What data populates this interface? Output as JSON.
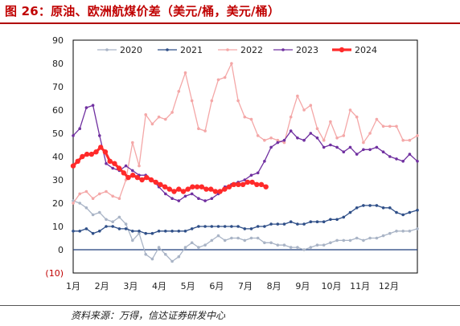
{
  "header": {
    "title": "图 26：原油、欧洲航煤价差（美元/桶，美元/桶）"
  },
  "source": "资料来源：万得，信达证券研发中心",
  "colors": {
    "2020": "#a9b4c6",
    "2021": "#2f4f88",
    "2022": "#f4a7a7",
    "2023": "#7030a0",
    "2024": "#ff2a2a",
    "accent": "#c00000"
  },
  "chart_data": {
    "type": "line",
    "xlabel": "",
    "ylabel": "",
    "xlim": [
      1,
      13
    ],
    "ylim": [
      -10,
      90
    ],
    "yticks": [
      -10,
      0,
      10,
      20,
      30,
      40,
      50,
      60,
      70,
      80,
      90
    ],
    "ytick_labels": [
      "(10)",
      "0",
      "10",
      "20",
      "30",
      "40",
      "50",
      "60",
      "70",
      "80",
      "90"
    ],
    "xticks": [
      1,
      2,
      3,
      4,
      5,
      6,
      7,
      8,
      9,
      10,
      11,
      12
    ],
    "xtick_labels": [
      "1月",
      "2月",
      "3月",
      "4月",
      "5月",
      "6月",
      "7月",
      "8月",
      "9月",
      "10月",
      "11月",
      "12月"
    ],
    "legend": {
      "position": "top",
      "entries": [
        "2020",
        "2021",
        "2022",
        "2023",
        "2024"
      ]
    },
    "series": [
      {
        "name": "2020",
        "markers": true,
        "x": [
          1.0,
          1.23,
          1.46,
          1.69,
          1.92,
          2.15,
          2.38,
          2.61,
          2.84,
          3.07,
          3.3,
          3.53,
          3.76,
          3.99,
          4.22,
          4.45,
          4.68,
          4.91,
          5.14,
          5.37,
          5.6,
          5.83,
          6.06,
          6.29,
          6.52,
          6.75,
          6.98,
          7.21,
          7.44,
          7.67,
          7.9,
          8.13,
          8.36,
          8.59,
          8.82,
          9.05,
          9.28,
          9.51,
          9.74,
          9.97,
          10.2,
          10.43,
          10.66,
          10.89,
          11.12,
          11.35,
          11.58,
          11.81,
          12.04,
          12.27,
          12.5,
          12.73,
          13.0
        ],
        "y": [
          21,
          20,
          18,
          15,
          16,
          13,
          12,
          14,
          11,
          4,
          7,
          -2,
          -4,
          1,
          -2,
          -5,
          -3,
          1,
          3,
          1,
          2,
          4,
          6,
          4,
          5,
          5,
          4,
          5,
          5,
          3,
          3,
          2,
          2,
          1,
          1,
          0,
          1,
          2,
          2,
          3,
          4,
          4,
          4,
          5,
          4,
          5,
          5,
          6,
          7,
          8,
          8,
          8,
          9
        ]
      },
      {
        "name": "2021",
        "markers": true,
        "x": [
          1.0,
          1.23,
          1.46,
          1.69,
          1.92,
          2.15,
          2.38,
          2.61,
          2.84,
          3.07,
          3.3,
          3.53,
          3.76,
          3.99,
          4.22,
          4.45,
          4.68,
          4.91,
          5.14,
          5.37,
          5.6,
          5.83,
          6.06,
          6.29,
          6.52,
          6.75,
          6.98,
          7.21,
          7.44,
          7.67,
          7.9,
          8.13,
          8.36,
          8.59,
          8.82,
          9.05,
          9.28,
          9.51,
          9.74,
          9.97,
          10.2,
          10.43,
          10.66,
          10.89,
          11.12,
          11.35,
          11.58,
          11.81,
          12.04,
          12.27,
          12.5,
          12.73,
          13.0
        ],
        "y": [
          8,
          8,
          9,
          7,
          8,
          10,
          10,
          9,
          9,
          8,
          8,
          7,
          7,
          8,
          8,
          8,
          8,
          8,
          9,
          10,
          10,
          10,
          10,
          10,
          10,
          10,
          9,
          9,
          10,
          10,
          11,
          11,
          11,
          12,
          11,
          11,
          12,
          12,
          12,
          13,
          13,
          14,
          16,
          18,
          19,
          19,
          19,
          18,
          18,
          16,
          15,
          16,
          17
        ]
      },
      {
        "name": "2022",
        "markers": true,
        "x": [
          1.0,
          1.23,
          1.46,
          1.69,
          1.92,
          2.15,
          2.38,
          2.61,
          2.84,
          3.07,
          3.3,
          3.53,
          3.76,
          3.99,
          4.22,
          4.45,
          4.68,
          4.91,
          5.14,
          5.37,
          5.6,
          5.83,
          6.06,
          6.29,
          6.52,
          6.75,
          6.98,
          7.21,
          7.44,
          7.67,
          7.9,
          8.13,
          8.36,
          8.59,
          8.82,
          9.05,
          9.28,
          9.51,
          9.74,
          9.97,
          10.2,
          10.43,
          10.66,
          10.89,
          11.12,
          11.35,
          11.58,
          11.81,
          12.04,
          12.27,
          12.5,
          12.73,
          13.0
        ],
        "y": [
          20,
          24,
          25,
          22,
          24,
          25,
          23,
          22,
          30,
          46,
          36,
          58,
          54,
          57,
          56,
          59,
          68,
          76,
          64,
          52,
          51,
          64,
          73,
          74,
          80,
          64,
          57,
          56,
          49,
          47,
          48,
          47,
          46,
          57,
          66,
          60,
          62,
          52,
          47,
          55,
          48,
          49,
          60,
          57,
          46,
          50,
          56,
          53,
          53,
          53,
          47,
          47,
          49
        ]
      },
      {
        "name": "2023",
        "markers": true,
        "x": [
          1.0,
          1.23,
          1.46,
          1.69,
          1.92,
          2.15,
          2.38,
          2.61,
          2.84,
          3.07,
          3.3,
          3.53,
          3.76,
          3.99,
          4.22,
          4.45,
          4.68,
          4.91,
          5.14,
          5.37,
          5.6,
          5.83,
          6.06,
          6.29,
          6.52,
          6.75,
          6.98,
          7.21,
          7.44,
          7.67,
          7.9,
          8.13,
          8.36,
          8.59,
          8.82,
          9.05,
          9.28,
          9.51,
          9.74,
          9.97,
          10.2,
          10.43,
          10.66,
          10.89,
          11.12,
          11.35,
          11.58,
          11.81,
          12.04,
          12.27,
          12.5,
          12.73,
          13.0
        ],
        "y": [
          49,
          52,
          61,
          62,
          49,
          37,
          35,
          34,
          36,
          34,
          32,
          32,
          30,
          27,
          24,
          22,
          21,
          23,
          24,
          22,
          21,
          22,
          24,
          27,
          28,
          29,
          30,
          32,
          33,
          38,
          44,
          46,
          47,
          51,
          48,
          47,
          50,
          48,
          44,
          45,
          44,
          42,
          44,
          41,
          43,
          43,
          44,
          42,
          40,
          39,
          38,
          41,
          38
        ]
      },
      {
        "name": "2024",
        "markers": true,
        "x": [
          1.0,
          1.16,
          1.32,
          1.48,
          1.64,
          1.8,
          1.96,
          2.12,
          2.28,
          2.44,
          2.6,
          2.76,
          2.92,
          3.08,
          3.24,
          3.4,
          3.56,
          3.72,
          3.88,
          4.04,
          4.2,
          4.36,
          4.52,
          4.68,
          4.84,
          5.0,
          5.16,
          5.32,
          5.48,
          5.64,
          5.8,
          5.96,
          6.12,
          6.28,
          6.44,
          6.6,
          6.76,
          6.92,
          7.08,
          7.24,
          7.4,
          7.56,
          7.72
        ],
        "y": [
          36,
          38,
          40,
          41,
          41,
          42,
          44,
          42,
          38,
          37,
          35,
          33,
          31,
          32,
          31,
          30,
          31,
          30,
          29,
          28,
          27,
          26,
          25,
          26,
          25,
          26,
          27,
          27,
          27,
          26,
          26,
          25,
          25,
          26,
          27,
          28,
          28,
          28,
          29,
          29,
          28,
          28,
          27
        ]
      }
    ]
  }
}
